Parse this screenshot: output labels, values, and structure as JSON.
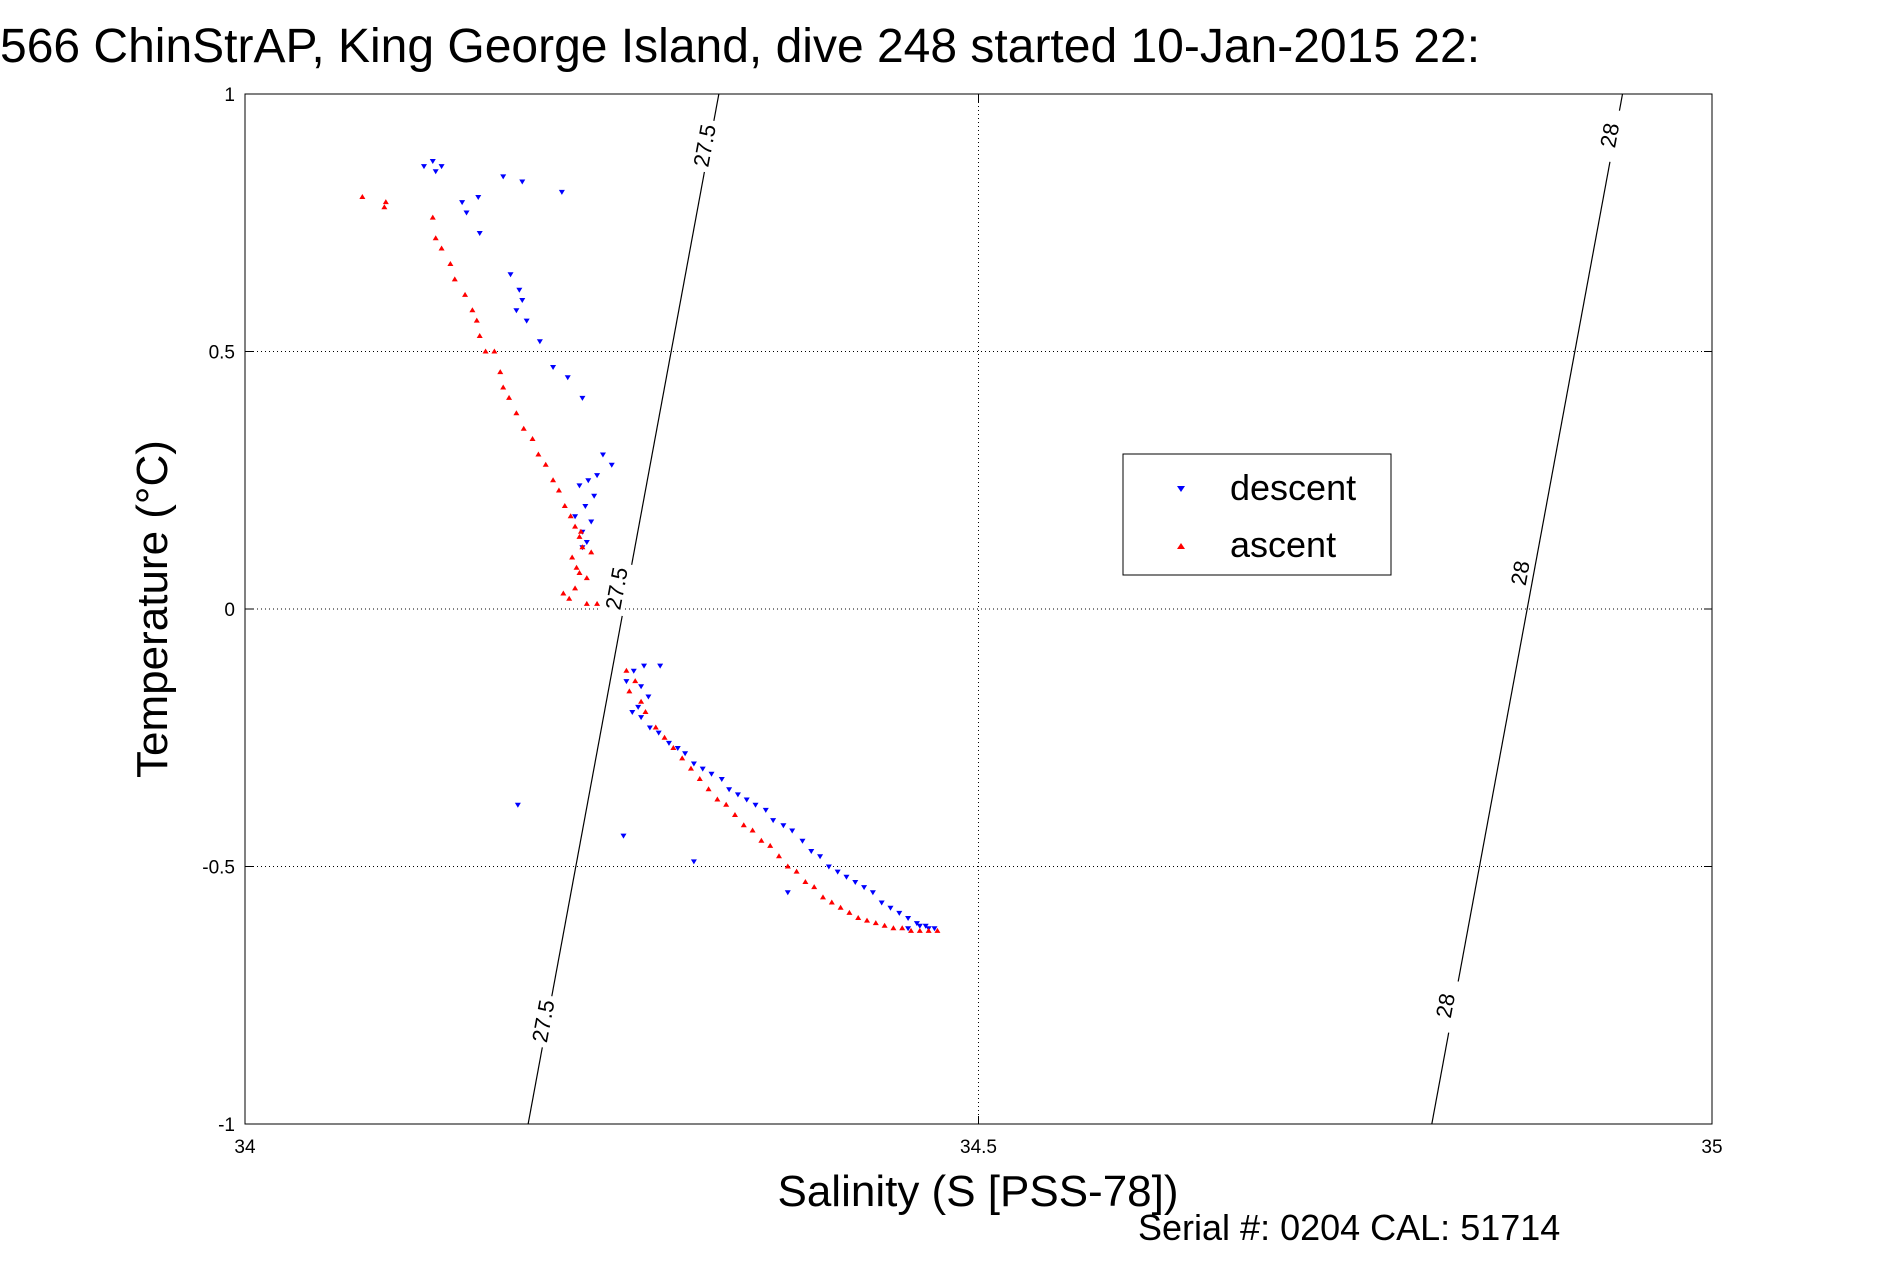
{
  "chart_data": {
    "type": "scatter",
    "title": "566 ChinStrAP, King George Island, dive 248 started 10-Jan-2015 22:",
    "xlabel": "Salinity (S [PSS-78])",
    "ylabel": "Temperature (°C)",
    "xlim": [
      34,
      35
    ],
    "ylim": [
      -1,
      1
    ],
    "x_ticks": [
      34,
      34.5,
      35
    ],
    "x_tick_labels": [
      "34",
      "34.5",
      "35"
    ],
    "y_ticks": [
      -1,
      -0.5,
      0,
      0.5,
      1
    ],
    "y_tick_labels": [
      "-1",
      "-0.5",
      "0",
      "0.5",
      "1"
    ],
    "grid": true,
    "legend_position": "center-right",
    "isopycnals": [
      {
        "label": "27.5",
        "x_at_ymin": 34.193,
        "x_at_ymax": 34.323
      },
      {
        "label": "28",
        "x_at_ymin": 34.809,
        "x_at_ymax": 34.939
      }
    ],
    "isopycnal_labels": [
      {
        "text": "27.5",
        "x": 34.313,
        "y": 0.9
      },
      {
        "text": "27.5",
        "x": 34.253,
        "y": 0.04
      },
      {
        "text": "27.5",
        "x": 34.203,
        "y": -0.8
      },
      {
        "text": "28",
        "x": 34.93,
        "y": 0.92
      },
      {
        "text": "28",
        "x": 34.869,
        "y": 0.07
      },
      {
        "text": "28",
        "x": 34.818,
        "y": -0.77
      }
    ],
    "series": [
      {
        "name": "descent",
        "color": "#0000ff",
        "marker": "triangle-down",
        "points": [
          [
            34.122,
            0.86
          ],
          [
            34.128,
            0.87
          ],
          [
            34.134,
            0.86
          ],
          [
            34.176,
            0.84
          ],
          [
            34.189,
            0.83
          ],
          [
            34.216,
            0.81
          ],
          [
            34.13,
            0.85
          ],
          [
            34.148,
            0.79
          ],
          [
            34.159,
            0.8
          ],
          [
            34.16,
            0.73
          ],
          [
            34.151,
            0.77
          ],
          [
            34.181,
            0.65
          ],
          [
            34.187,
            0.62
          ],
          [
            34.185,
            0.58
          ],
          [
            34.189,
            0.6
          ],
          [
            34.192,
            0.56
          ],
          [
            34.201,
            0.52
          ],
          [
            34.21,
            0.47
          ],
          [
            34.22,
            0.45
          ],
          [
            34.23,
            0.41
          ],
          [
            34.244,
            0.3
          ],
          [
            34.25,
            0.28
          ],
          [
            34.24,
            0.26
          ],
          [
            34.228,
            0.24
          ],
          [
            34.234,
            0.25
          ],
          [
            34.238,
            0.22
          ],
          [
            34.232,
            0.2
          ],
          [
            34.225,
            0.18
          ],
          [
            34.236,
            0.17
          ],
          [
            34.23,
            0.15
          ],
          [
            34.233,
            0.13
          ],
          [
            34.23,
            0.12
          ],
          [
            34.272,
            -0.11
          ],
          [
            34.283,
            -0.11
          ],
          [
            34.265,
            -0.12
          ],
          [
            34.26,
            -0.14
          ],
          [
            34.27,
            -0.15
          ],
          [
            34.275,
            -0.17
          ],
          [
            34.268,
            -0.19
          ],
          [
            34.264,
            -0.2
          ],
          [
            34.27,
            -0.21
          ],
          [
            34.276,
            -0.23
          ],
          [
            34.282,
            -0.24
          ],
          [
            34.289,
            -0.26
          ],
          [
            34.295,
            -0.27
          ],
          [
            34.3,
            -0.28
          ],
          [
            34.306,
            -0.3
          ],
          [
            34.312,
            -0.31
          ],
          [
            34.318,
            -0.32
          ],
          [
            34.325,
            -0.33
          ],
          [
            34.33,
            -0.35
          ],
          [
            34.336,
            -0.36
          ],
          [
            34.342,
            -0.37
          ],
          [
            34.348,
            -0.38
          ],
          [
            34.355,
            -0.39
          ],
          [
            34.36,
            -0.41
          ],
          [
            34.367,
            -0.42
          ],
          [
            34.373,
            -0.43
          ],
          [
            34.38,
            -0.45
          ],
          [
            34.386,
            -0.47
          ],
          [
            34.392,
            -0.48
          ],
          [
            34.398,
            -0.5
          ],
          [
            34.404,
            -0.51
          ],
          [
            34.41,
            -0.52
          ],
          [
            34.416,
            -0.53
          ],
          [
            34.422,
            -0.54
          ],
          [
            34.428,
            -0.55
          ],
          [
            34.434,
            -0.57
          ],
          [
            34.44,
            -0.58
          ],
          [
            34.446,
            -0.59
          ],
          [
            34.452,
            -0.6
          ],
          [
            34.458,
            -0.61
          ],
          [
            34.464,
            -0.615
          ],
          [
            34.47,
            -0.62
          ],
          [
            34.452,
            -0.62
          ],
          [
            34.46,
            -0.615
          ],
          [
            34.466,
            -0.62
          ],
          [
            34.186,
            -0.38
          ],
          [
            34.258,
            -0.44
          ],
          [
            34.306,
            -0.49
          ],
          [
            34.37,
            -0.55
          ]
        ]
      },
      {
        "name": "ascent",
        "color": "#ff0000",
        "marker": "triangle-up",
        "points": [
          [
            34.08,
            0.8
          ],
          [
            34.095,
            0.78
          ],
          [
            34.096,
            0.79
          ],
          [
            34.128,
            0.76
          ],
          [
            34.13,
            0.72
          ],
          [
            34.134,
            0.7
          ],
          [
            34.14,
            0.67
          ],
          [
            34.143,
            0.64
          ],
          [
            34.15,
            0.61
          ],
          [
            34.155,
            0.58
          ],
          [
            34.158,
            0.56
          ],
          [
            34.16,
            0.53
          ],
          [
            34.164,
            0.5
          ],
          [
            34.17,
            0.5
          ],
          [
            34.174,
            0.46
          ],
          [
            34.176,
            0.43
          ],
          [
            34.18,
            0.41
          ],
          [
            34.185,
            0.38
          ],
          [
            34.19,
            0.35
          ],
          [
            34.196,
            0.33
          ],
          [
            34.2,
            0.3
          ],
          [
            34.205,
            0.28
          ],
          [
            34.21,
            0.25
          ],
          [
            34.214,
            0.23
          ],
          [
            34.218,
            0.2
          ],
          [
            34.222,
            0.18
          ],
          [
            34.225,
            0.16
          ],
          [
            34.228,
            0.14
          ],
          [
            34.23,
            0.12
          ],
          [
            34.223,
            0.1
          ],
          [
            34.228,
            0.07
          ],
          [
            34.233,
            0.06
          ],
          [
            34.225,
            0.04
          ],
          [
            34.217,
            0.03
          ],
          [
            34.221,
            0.02
          ],
          [
            34.233,
            0.01
          ],
          [
            34.24,
            0.01
          ],
          [
            34.226,
            0.08
          ],
          [
            34.236,
            0.11
          ],
          [
            34.229,
            0.15
          ],
          [
            34.26,
            -0.12
          ],
          [
            34.266,
            -0.14
          ],
          [
            34.262,
            -0.16
          ],
          [
            34.27,
            -0.18
          ],
          [
            34.273,
            -0.2
          ],
          [
            34.28,
            -0.23
          ],
          [
            34.286,
            -0.25
          ],
          [
            34.292,
            -0.27
          ],
          [
            34.298,
            -0.29
          ],
          [
            34.304,
            -0.31
          ],
          [
            34.31,
            -0.33
          ],
          [
            34.316,
            -0.35
          ],
          [
            34.322,
            -0.37
          ],
          [
            34.328,
            -0.38
          ],
          [
            34.334,
            -0.4
          ],
          [
            34.34,
            -0.42
          ],
          [
            34.346,
            -0.43
          ],
          [
            34.352,
            -0.45
          ],
          [
            34.358,
            -0.46
          ],
          [
            34.364,
            -0.48
          ],
          [
            34.37,
            -0.5
          ],
          [
            34.376,
            -0.51
          ],
          [
            34.382,
            -0.53
          ],
          [
            34.388,
            -0.54
          ],
          [
            34.394,
            -0.56
          ],
          [
            34.4,
            -0.57
          ],
          [
            34.406,
            -0.58
          ],
          [
            34.412,
            -0.59
          ],
          [
            34.418,
            -0.6
          ],
          [
            34.424,
            -0.605
          ],
          [
            34.43,
            -0.61
          ],
          [
            34.436,
            -0.615
          ],
          [
            34.442,
            -0.62
          ],
          [
            34.448,
            -0.62
          ],
          [
            34.454,
            -0.625
          ],
          [
            34.46,
            -0.625
          ],
          [
            34.466,
            -0.625
          ],
          [
            34.472,
            -0.625
          ]
        ]
      }
    ]
  },
  "footer": {
    "serial_text": "Serial #: 0204  CAL: 51714"
  }
}
